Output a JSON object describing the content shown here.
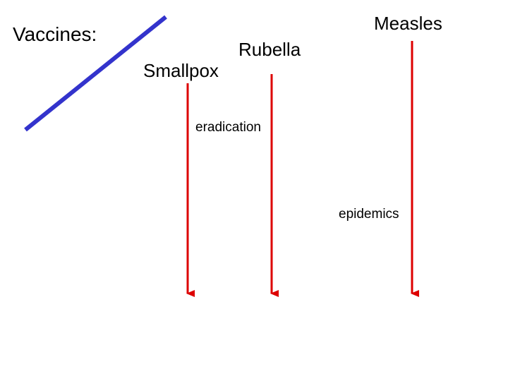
{
  "title": "Vaccines:",
  "labels": {
    "smallpox": "Smallpox",
    "rubella": "Rubella",
    "measles": "Measles",
    "eradication": "eradication",
    "epidemics": "epidemics"
  }
}
